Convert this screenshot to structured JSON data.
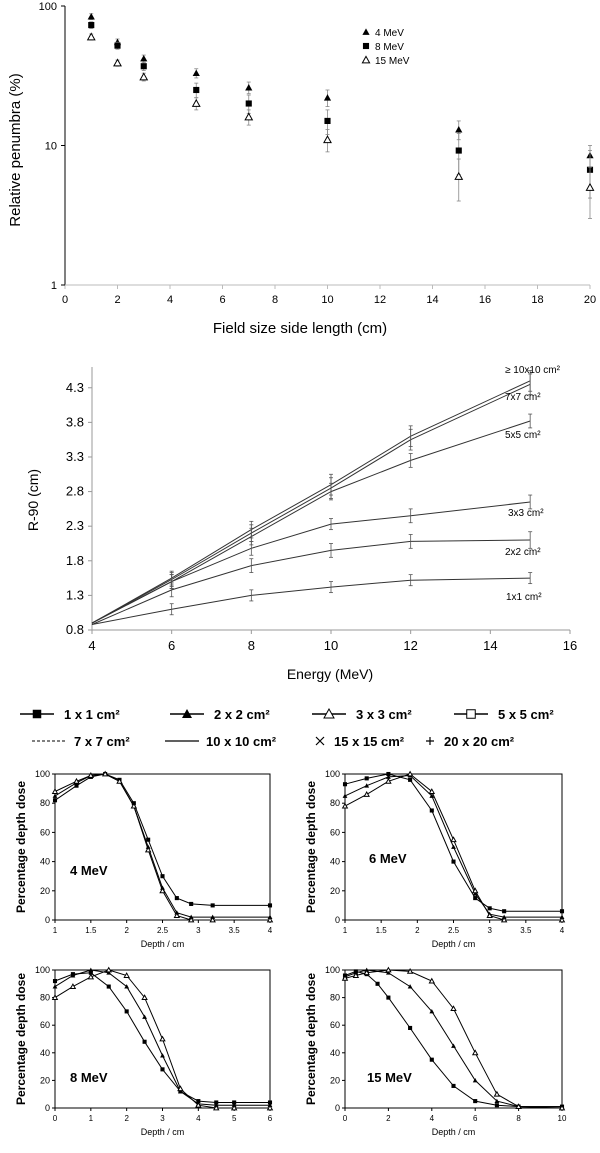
{
  "charts": {
    "penumbra": {
      "type": "scatter",
      "xlabel": "Field size side length (cm)",
      "ylabel": "Relative penumbra (%)",
      "xlim": [
        0,
        20
      ],
      "ylim": [
        1,
        100
      ],
      "yscale": "log",
      "xticks": [
        "0",
        "2",
        "4",
        "6",
        "8",
        "10",
        "12",
        "14",
        "16",
        "18",
        "20"
      ],
      "yticks": [
        "1",
        "10",
        "100"
      ],
      "legend_position": "top-right",
      "x": [
        1,
        2,
        3,
        5,
        7,
        10,
        15,
        20
      ],
      "series": [
        {
          "name": "4 MeV",
          "marker": "filled-triangle",
          "values": [
            84,
            55,
            42,
            33,
            26,
            22,
            13,
            8.5
          ],
          "err": [
            4,
            3,
            2.5,
            2.5,
            2.5,
            3,
            2,
            1.5
          ]
        },
        {
          "name": "8 MeV",
          "marker": "filled-square",
          "values": [
            73,
            52,
            37,
            25,
            20,
            15,
            9.2,
            6.7
          ],
          "err": [
            4,
            3,
            2.5,
            3,
            3,
            3,
            3,
            2.5
          ]
        },
        {
          "name": "15 MeV",
          "marker": "open-triangle",
          "values": [
            60,
            39,
            31,
            20,
            16,
            11,
            6,
            5
          ],
          "err": [
            3,
            2,
            2,
            2,
            2,
            2,
            2,
            2
          ]
        }
      ]
    },
    "r90": {
      "type": "line",
      "xlabel": "Energy (MeV)",
      "ylabel": "R-90  (cm)",
      "xlim": [
        4,
        16
      ],
      "ylim": [
        0.8,
        4.6
      ],
      "xticks": [
        "4",
        "6",
        "8",
        "10",
        "12",
        "14",
        "16"
      ],
      "yticks": [
        "0.8",
        "1.3",
        "1.8",
        "2.3",
        "2.8",
        "3.3",
        "3.8",
        "4.3"
      ],
      "x": [
        4,
        6,
        8,
        10,
        12,
        15
      ],
      "series": [
        {
          "name": "≥ 10x10 cm²",
          "values": [
            0.9,
            1.55,
            2.25,
            2.9,
            3.6,
            4.4
          ],
          "err": [
            0.04,
            0.1,
            0.12,
            0.15,
            0.15,
            0.15
          ]
        },
        {
          "name": "7x7 cm²",
          "values": [
            0.9,
            1.53,
            2.2,
            2.85,
            3.55,
            4.35
          ],
          "err": [
            0.04,
            0.1,
            0.12,
            0.15,
            0.15,
            0.15
          ]
        },
        {
          "name": "5x5 cm²",
          "values": [
            0.9,
            1.5,
            2.15,
            2.8,
            3.25,
            3.82
          ],
          "err": [
            0.04,
            0.1,
            0.12,
            0.12,
            0.1,
            0.1
          ]
        },
        {
          "name": "3x3 cm²",
          "values": [
            0.9,
            1.5,
            1.98,
            2.33,
            2.45,
            2.65
          ],
          "err": [
            0.04,
            0.1,
            0.1,
            0.08,
            0.1,
            0.1
          ]
        },
        {
          "name": "2x2 cm²",
          "values": [
            0.88,
            1.38,
            1.73,
            1.95,
            2.08,
            2.1
          ],
          "err": [
            0.04,
            0.1,
            0.1,
            0.1,
            0.1,
            0.12
          ]
        },
        {
          "name": "1x1 cm²",
          "values": [
            0.88,
            1.1,
            1.3,
            1.42,
            1.52,
            1.55
          ],
          "err": [
            0.04,
            0.08,
            0.08,
            0.08,
            0.08,
            0.08
          ]
        }
      ]
    },
    "pdd_legend": [
      {
        "label": "1 x 1 cm²",
        "marker": "line-filled-square"
      },
      {
        "label": "2 x 2 cm²",
        "marker": "line-filled-triangle"
      },
      {
        "label": "3 x 3 cm²",
        "marker": "line-open-triangle"
      },
      {
        "label": "5 x 5 cm²",
        "marker": "line-open-square"
      },
      {
        "label": "7 x 7 cm²",
        "marker": "dashed-line"
      },
      {
        "label": "10 x 10 cm²",
        "marker": "solid-line"
      },
      {
        "label": "15 x 15 cm²",
        "marker": "cross"
      },
      {
        "label": "20 x 20 cm²",
        "marker": "plus"
      }
    ],
    "pdd_panels": [
      {
        "label": "4 MeV",
        "xlabel": "Depth / cm",
        "ylabel": "Percentage depth dose",
        "xlim": [
          1,
          4
        ],
        "ylim": [
          0,
          100
        ],
        "xticks": [
          "1",
          "1.5",
          "2",
          "2.5",
          "3",
          "3.5",
          "4"
        ],
        "yticks": [
          "0",
          "20",
          "40",
          "60",
          "80",
          "100"
        ],
        "curves": [
          {
            "field": "1 x 1 cm²",
            "x": [
              1,
              1.3,
              1.5,
              1.7,
              1.9,
              2.1,
              2.3,
              2.5,
              2.7,
              2.9,
              3.2,
              4.0
            ],
            "y": [
              82,
              92,
              98,
              100,
              96,
              80,
              55,
              30,
              15,
              11,
              10,
              10
            ]
          },
          {
            "field": "2 x 2 cm²",
            "x": [
              1,
              1.3,
              1.5,
              1.7,
              1.9,
              2.1,
              2.3,
              2.5,
              2.7,
              2.9,
              3.2,
              4.0
            ],
            "y": [
              85,
              94,
              99,
              100,
              95,
              78,
              50,
              22,
              5,
              2,
              2,
              2
            ]
          },
          {
            "field": "10 x 10 cm²",
            "x": [
              1,
              1.3,
              1.5,
              1.7,
              1.9,
              2.1,
              2.3,
              2.5,
              2.7,
              2.9,
              3.2,
              4.0
            ],
            "y": [
              88,
              95,
              99,
              100,
              95,
              78,
              48,
              20,
              3,
              0,
              0,
              0
            ]
          }
        ]
      },
      {
        "label": "6 MeV",
        "xlabel": "Depth / cm",
        "ylabel": "Percentage depth dose",
        "xlim": [
          1,
          4
        ],
        "ylim": [
          0,
          100
        ],
        "xticks": [
          "1",
          "1.5",
          "2",
          "2.5",
          "3",
          "3.5",
          "4"
        ],
        "yticks": [
          "0",
          "20",
          "40",
          "60",
          "80",
          "100"
        ],
        "curves": [
          {
            "field": "1 x 1 cm²",
            "x": [
              1,
              1.3,
              1.6,
              1.9,
              2.2,
              2.5,
              2.8,
              3.0,
              3.2,
              4.0
            ],
            "y": [
              93,
              97,
              100,
              96,
              75,
              40,
              15,
              8,
              6,
              6
            ]
          },
          {
            "field": "3 x 3 cm²",
            "x": [
              1,
              1.3,
              1.6,
              1.9,
              2.2,
              2.5,
              2.8,
              3.0,
              3.2,
              4.0
            ],
            "y": [
              85,
              92,
              98,
              99,
              85,
              50,
              18,
              4,
              2,
              2
            ]
          },
          {
            "field": "10 x 10 cm²",
            "x": [
              1,
              1.3,
              1.6,
              1.9,
              2.2,
              2.5,
              2.8,
              3.0,
              3.2,
              4.0
            ],
            "y": [
              78,
              86,
              95,
              100,
              88,
              55,
              20,
              3,
              0,
              0
            ]
          }
        ]
      },
      {
        "label": "8 MeV",
        "xlabel": "Depth / cm",
        "ylabel": "Percentage depth dose",
        "xlim": [
          0,
          6
        ],
        "ylim": [
          0,
          100
        ],
        "xticks": [
          "0",
          "1",
          "2",
          "3",
          "4",
          "5",
          "6"
        ],
        "yticks": [
          "0",
          "20",
          "40",
          "60",
          "80",
          "100"
        ],
        "curves": [
          {
            "field": "1 x 1 cm²",
            "x": [
              0,
              0.5,
              1,
              1.5,
              2,
              2.5,
              3,
              3.5,
              4,
              4.5,
              5,
              6
            ],
            "y": [
              92,
              97,
              98,
              88,
              70,
              48,
              28,
              12,
              5,
              4,
              4,
              4
            ]
          },
          {
            "field": "2 x 2 cm²",
            "x": [
              0,
              0.5,
              1,
              1.5,
              2,
              2.5,
              3,
              3.5,
              4,
              4.5,
              5,
              6
            ],
            "y": [
              88,
              96,
              100,
              98,
              88,
              66,
              38,
              12,
              3,
              2,
              2,
              2
            ]
          },
          {
            "field": "10 x 10 cm²",
            "x": [
              0,
              0.5,
              1,
              1.5,
              2,
              2.5,
              3,
              3.5,
              4,
              4.5,
              5,
              6
            ],
            "y": [
              80,
              88,
              95,
              100,
              96,
              80,
              50,
              14,
              2,
              0,
              0,
              0
            ]
          }
        ]
      },
      {
        "label": "15 MeV",
        "xlabel": "Depth / cm",
        "ylabel": "Percentage depth dose",
        "xlim": [
          0,
          10
        ],
        "ylim": [
          0,
          100
        ],
        "xticks": [
          "0",
          "2",
          "4",
          "6",
          "8",
          "10"
        ],
        "yticks": [
          "0",
          "20",
          "40",
          "60",
          "80",
          "100"
        ],
        "curves": [
          {
            "field": "1 x 1 cm²",
            "x": [
              0,
              0.5,
              1,
              1.5,
              2,
              3,
              4,
              5,
              6,
              7,
              8,
              10
            ],
            "y": [
              96,
              99,
              97,
              90,
              80,
              58,
              35,
              16,
              5,
              2,
              1,
              1
            ]
          },
          {
            "field": "3 x 3 cm²",
            "x": [
              0,
              0.5,
              1,
              2,
              3,
              4,
              5,
              6,
              7,
              8,
              10
            ],
            "y": [
              95,
              98,
              100,
              98,
              88,
              70,
              45,
              20,
              5,
              1,
              1
            ]
          },
          {
            "field": "10 x 10 cm²",
            "x": [
              0,
              0.5,
              1,
              2,
              3,
              4,
              5,
              6,
              7,
              8,
              10
            ],
            "y": [
              94,
              96,
              98,
              100,
              99,
              92,
              72,
              40,
              10,
              1,
              0
            ]
          }
        ]
      }
    ]
  }
}
